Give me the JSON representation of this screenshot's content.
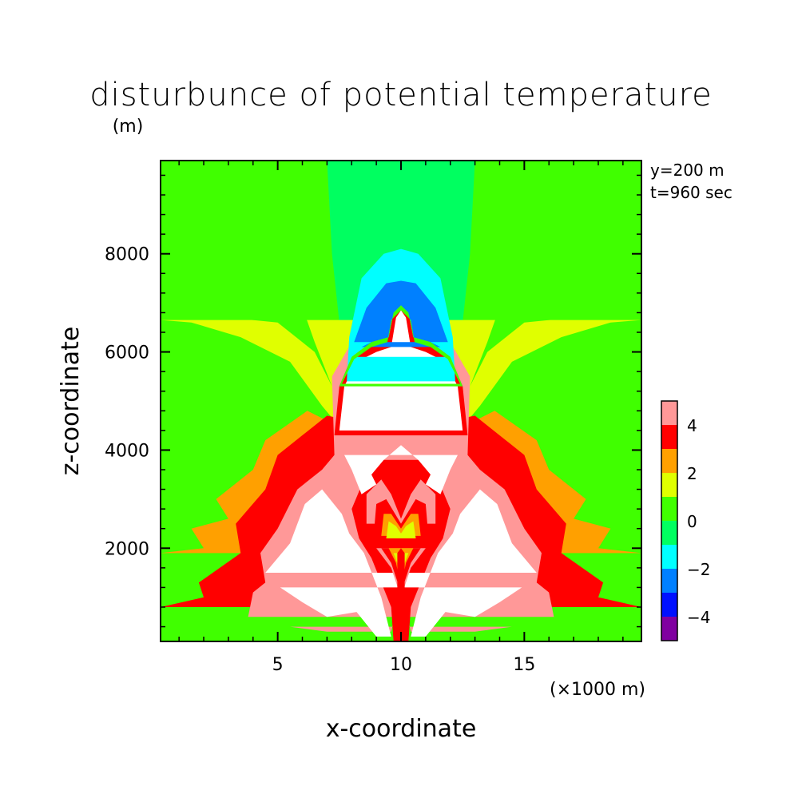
{
  "chart_data": {
    "type": "heatmap",
    "title": "disturbunce of potential temperature",
    "xlabel": "x-coordinate",
    "ylabel": "z-coordinate",
    "x_unit_label": "(×1000 m)",
    "y_unit_label": "(m)",
    "annotations": [
      "y=200 m",
      "t=960 sec"
    ],
    "xlim": [
      0.25,
      19.75
    ],
    "ylim": [
      100,
      9900
    ],
    "x_ticks": [
      5,
      10,
      15
    ],
    "y_ticks": [
      2000,
      4000,
      6000,
      8000
    ],
    "colorbar": {
      "levels": [
        -5,
        -4,
        -3,
        -2,
        -1,
        0,
        1,
        2,
        3,
        4,
        5
      ],
      "tick_labels": [
        -4,
        -2,
        0,
        2,
        4
      ],
      "colors": [
        "#8000a0",
        "#0010ff",
        "#0080ff",
        "#00ffff",
        "#00ff60",
        "#40ff00",
        "#e0ff00",
        "#ffa000",
        "#ff0000",
        "#ff9898"
      ],
      "above_max_color": "#ffffff"
    },
    "field_description_levels": {
      "far_field_upper": 0.5,
      "far_field_mid": 1.5,
      "far_field_low": 2.5,
      "near_surface": 3.5
    }
  }
}
